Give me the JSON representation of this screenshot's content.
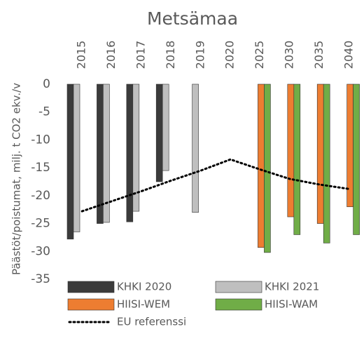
{
  "chart_data": {
    "type": "bar",
    "title": "Metsämaa",
    "y_label": "Päästöt/poistumat, milj. t CO2 ekv./v",
    "categories": [
      "2015",
      "2016",
      "2017",
      "2018",
      "2019",
      "2020",
      "2025",
      "2030",
      "2035",
      "2040"
    ],
    "series": [
      {
        "name": "KHKI 2020",
        "color": "#3b3b3b",
        "values": [
          -27.8,
          -25,
          -24.7,
          -17.5,
          null,
          null,
          null,
          null,
          null,
          null
        ]
      },
      {
        "name": "KHKI 2021",
        "color": "#bfbfbf",
        "values": [
          -26.5,
          -24.8,
          -22.8,
          -15.5,
          -23,
          null,
          null,
          null,
          null,
          null
        ]
      },
      {
        "name": "HIISI-WEM",
        "color": "#ed7d31",
        "values": [
          null,
          null,
          null,
          null,
          null,
          null,
          -29.3,
          -23.8,
          -25,
          -22
        ]
      },
      {
        "name": "HIISI-WAM",
        "color": "#70ad47",
        "values": [
          null,
          null,
          null,
          null,
          null,
          null,
          -30.2,
          -27,
          -28.5,
          -27
        ]
      },
      {
        "name": "EU referenssi",
        "type": "line",
        "style": "dotted",
        "color": "#000000",
        "values": [
          -22.8,
          -21,
          -19.2,
          -17.3,
          -15.5,
          -13.5,
          -15.3,
          -17,
          -18,
          -18.8
        ]
      }
    ],
    "ylim": [
      0,
      -35
    ],
    "yticks": [
      0,
      -5,
      -10,
      -15,
      -20,
      -25,
      -30,
      -35
    ],
    "grid": false
  }
}
